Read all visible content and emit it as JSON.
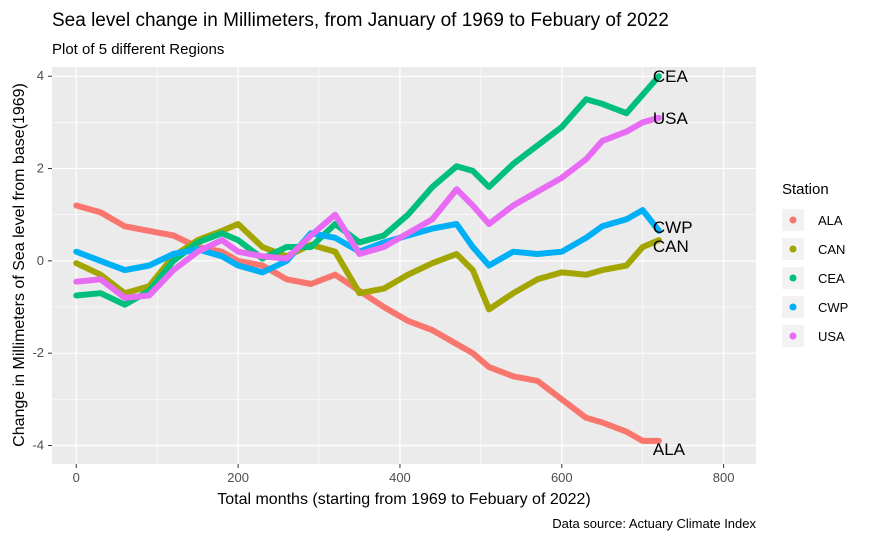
{
  "chart_data": {
    "type": "line",
    "title": "Sea level change in Millimeters, from January of 1969 to Febuary of 2022",
    "subtitle": "Plot of 5 different Regions",
    "xlabel": "Total months (starting from 1969 to Febuary of 2022)",
    "ylabel": "Change in Millimeters of Sea level from base(1969)",
    "caption": "Data source: Actuary Climate Index",
    "xlim": [
      -30,
      840
    ],
    "ylim": [
      -4.4,
      4.2
    ],
    "x_ticks": [
      0,
      200,
      400,
      600,
      800
    ],
    "y_ticks": [
      -4,
      -2,
      0,
      2,
      4
    ],
    "grid": true,
    "legend": {
      "title": "Station",
      "position": "right"
    },
    "x": [
      0,
      30,
      60,
      90,
      120,
      150,
      180,
      200,
      230,
      260,
      290,
      320,
      350,
      380,
      410,
      440,
      470,
      490,
      510,
      540,
      570,
      600,
      630,
      650,
      680,
      700,
      720
    ],
    "series": [
      {
        "name": "ALA",
        "color": "#F8766D",
        "end_label": "ALA",
        "values": [
          1.2,
          1.05,
          0.75,
          0.65,
          0.55,
          0.3,
          0.2,
          0.0,
          -0.1,
          -0.4,
          -0.5,
          -0.3,
          -0.65,
          -1.0,
          -1.3,
          -1.5,
          -1.8,
          -2.0,
          -2.3,
          -2.5,
          -2.6,
          -3.0,
          -3.4,
          -3.5,
          -3.7,
          -3.9,
          -3.9
        ]
      },
      {
        "name": "CAN",
        "color": "#A3A500",
        "end_label": "CAN",
        "values": [
          -0.05,
          -0.3,
          -0.7,
          -0.55,
          0.1,
          0.45,
          0.65,
          0.8,
          0.3,
          0.1,
          0.35,
          0.2,
          -0.7,
          -0.6,
          -0.3,
          -0.05,
          0.15,
          -0.2,
          -1.05,
          -0.7,
          -0.4,
          -0.25,
          -0.3,
          -0.2,
          -0.1,
          0.3,
          0.45
        ]
      },
      {
        "name": "CEA",
        "color": "#00BF7D",
        "end_label": "CEA",
        "values": [
          -0.75,
          -0.7,
          -0.95,
          -0.65,
          0.0,
          0.4,
          0.6,
          0.45,
          0.05,
          0.3,
          0.3,
          0.8,
          0.4,
          0.55,
          1.0,
          1.6,
          2.05,
          1.95,
          1.6,
          2.1,
          2.5,
          2.9,
          3.5,
          3.4,
          3.2,
          3.6,
          4.0
        ]
      },
      {
        "name": "CWP",
        "color": "#00B0F6",
        "end_label": "CWP",
        "values": [
          0.2,
          0.0,
          -0.2,
          -0.1,
          0.15,
          0.25,
          0.1,
          -0.1,
          -0.25,
          0.0,
          0.6,
          0.5,
          0.2,
          0.4,
          0.55,
          0.7,
          0.8,
          0.3,
          -0.1,
          0.2,
          0.15,
          0.2,
          0.5,
          0.75,
          0.9,
          1.1,
          0.65
        ]
      },
      {
        "name": "USA",
        "color": "#E76BF3",
        "end_label": "USA",
        "values": [
          -0.45,
          -0.4,
          -0.8,
          -0.75,
          -0.2,
          0.2,
          0.45,
          0.2,
          0.1,
          0.05,
          0.55,
          1.0,
          0.15,
          0.3,
          0.6,
          0.9,
          1.55,
          1.2,
          0.8,
          1.2,
          1.5,
          1.8,
          2.2,
          2.6,
          2.8,
          3.0,
          3.1
        ]
      }
    ]
  }
}
